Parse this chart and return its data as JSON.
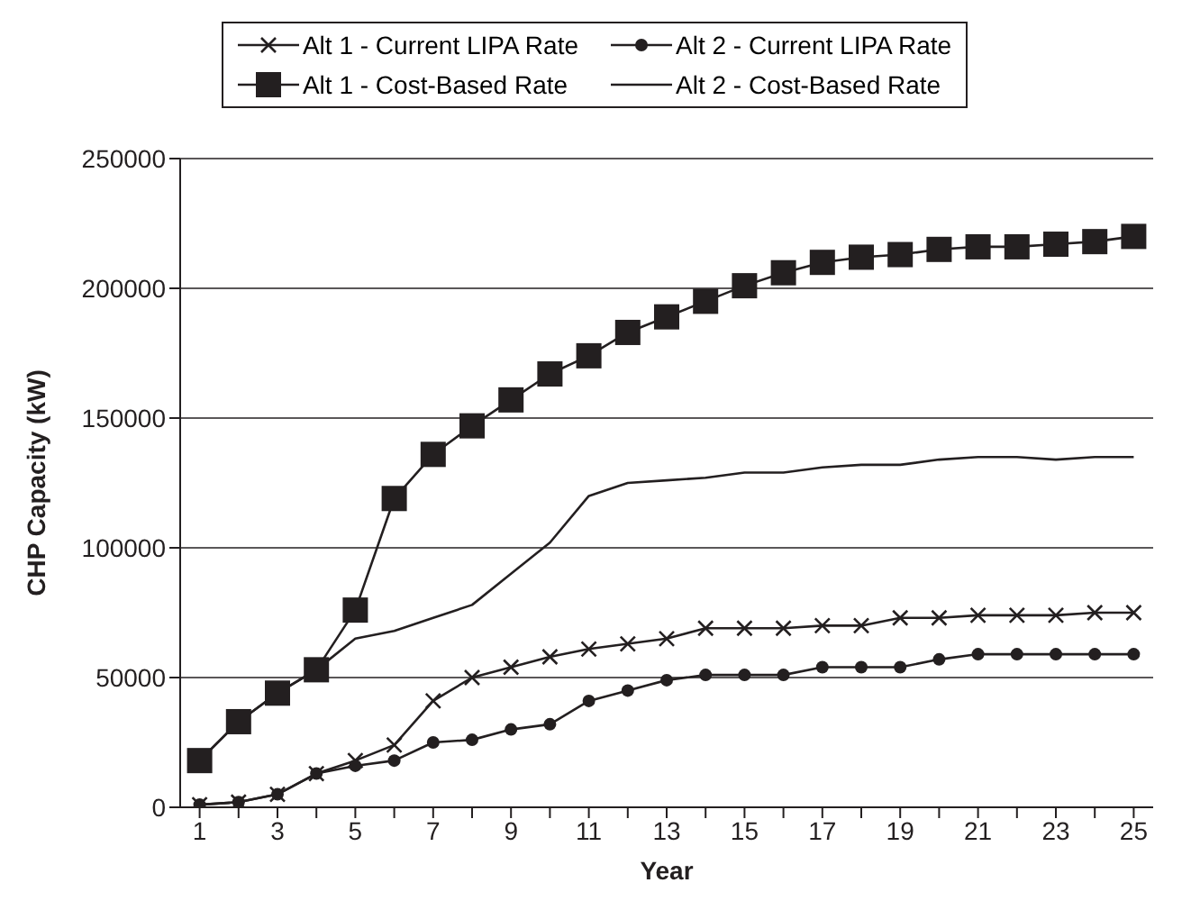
{
  "chart_data": {
    "type": "line",
    "xlabel": "Year",
    "ylabel": "CHP Capacity (kW)",
    "x": [
      1,
      2,
      3,
      4,
      5,
      6,
      7,
      8,
      9,
      10,
      11,
      12,
      13,
      14,
      15,
      16,
      17,
      18,
      19,
      20,
      21,
      22,
      23,
      24,
      25
    ],
    "xlim": [
      0.5,
      25.5
    ],
    "xticks": [
      1,
      {
        "value": 2,
        "label": null
      },
      3,
      {
        "value": 4,
        "label": null
      },
      5,
      {
        "value": 6,
        "label": null
      },
      7,
      {
        "value": 8,
        "label": null
      },
      9,
      {
        "value": 10,
        "label": null
      },
      11,
      {
        "value": 12,
        "label": null
      },
      13,
      {
        "value": 14,
        "label": null
      },
      15,
      {
        "value": 16,
        "label": null
      },
      17,
      {
        "value": 18,
        "label": null
      },
      19,
      {
        "value": 20,
        "label": null
      },
      21,
      {
        "value": 22,
        "label": null
      },
      23,
      {
        "value": 24,
        "label": null
      },
      25
    ],
    "ylim": [
      0,
      250000
    ],
    "yticks": [
      0,
      50000,
      100000,
      150000,
      200000,
      250000
    ],
    "grid": "y",
    "legend": "top",
    "line_style": "solid",
    "series": [
      {
        "name": "Alt 1 - Current LIPA Rate",
        "color": "#231f20",
        "marker": "cross",
        "values": [
          1000,
          2000,
          5000,
          13000,
          18000,
          24000,
          41000,
          50000,
          54000,
          58000,
          61000,
          63000,
          65000,
          69000,
          69000,
          69000,
          70000,
          70000,
          73000,
          73000,
          74000,
          74000,
          74000,
          75000,
          75000
        ]
      },
      {
        "name": "Alt 2 - Current LIPA Rate",
        "color": "#231f20",
        "marker": "circle",
        "values": [
          1000,
          2000,
          5000,
          13000,
          16000,
          18000,
          25000,
          26000,
          30000,
          32000,
          41000,
          45000,
          49000,
          51000,
          51000,
          51000,
          54000,
          54000,
          54000,
          57000,
          59000,
          59000,
          59000,
          59000,
          59000
        ]
      },
      {
        "name": "Alt 1 - Cost-Based Rate",
        "color": "#231f20",
        "marker": "square",
        "values": [
          18000,
          33000,
          44000,
          53000,
          76000,
          119000,
          136000,
          147000,
          157000,
          167000,
          174000,
          183000,
          189000,
          195000,
          201000,
          206000,
          210000,
          212000,
          213000,
          215000,
          216000,
          216000,
          217000,
          218000,
          220000
        ]
      },
      {
        "name": "Alt 2 - Cost-Based Rate",
        "color": "#231f20",
        "marker": "none",
        "values": [
          18000,
          33000,
          44000,
          53000,
          65000,
          68000,
          73000,
          78000,
          90000,
          102000,
          120000,
          125000,
          126000,
          127000,
          129000,
          129000,
          131000,
          132000,
          132000,
          134000,
          135000,
          135000,
          134000,
          135000,
          135000
        ]
      }
    ]
  }
}
